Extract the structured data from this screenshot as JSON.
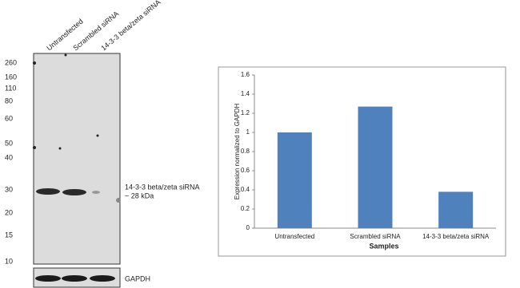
{
  "blot": {
    "lanes": [
      "Untransfected",
      "Scrambled siRNA",
      "14-3-3 beta/zeta siRNA"
    ],
    "markers": [
      260,
      160,
      110,
      80,
      60,
      50,
      40,
      30,
      20,
      15,
      10
    ],
    "annotation": [
      "14-3-3 beta/zeta siRNA",
      "~ 28 kDa"
    ],
    "loading_control": "GAPDH"
  },
  "chart_data": {
    "type": "bar",
    "x_label": "Samples",
    "y_label": "Expression  normalized to GAPDH",
    "categories": [
      "Untransfected",
      "Scrambled siRNA",
      "14-3-3 beta/zeta siRNA"
    ],
    "values": [
      1,
      1.27,
      0.38
    ],
    "color": "#4f81bd",
    "ylim": [
      0,
      1.6
    ],
    "yticks": [
      0,
      0.2,
      0.4,
      0.6,
      0.8,
      1,
      1.2,
      1.4,
      1.6
    ]
  }
}
